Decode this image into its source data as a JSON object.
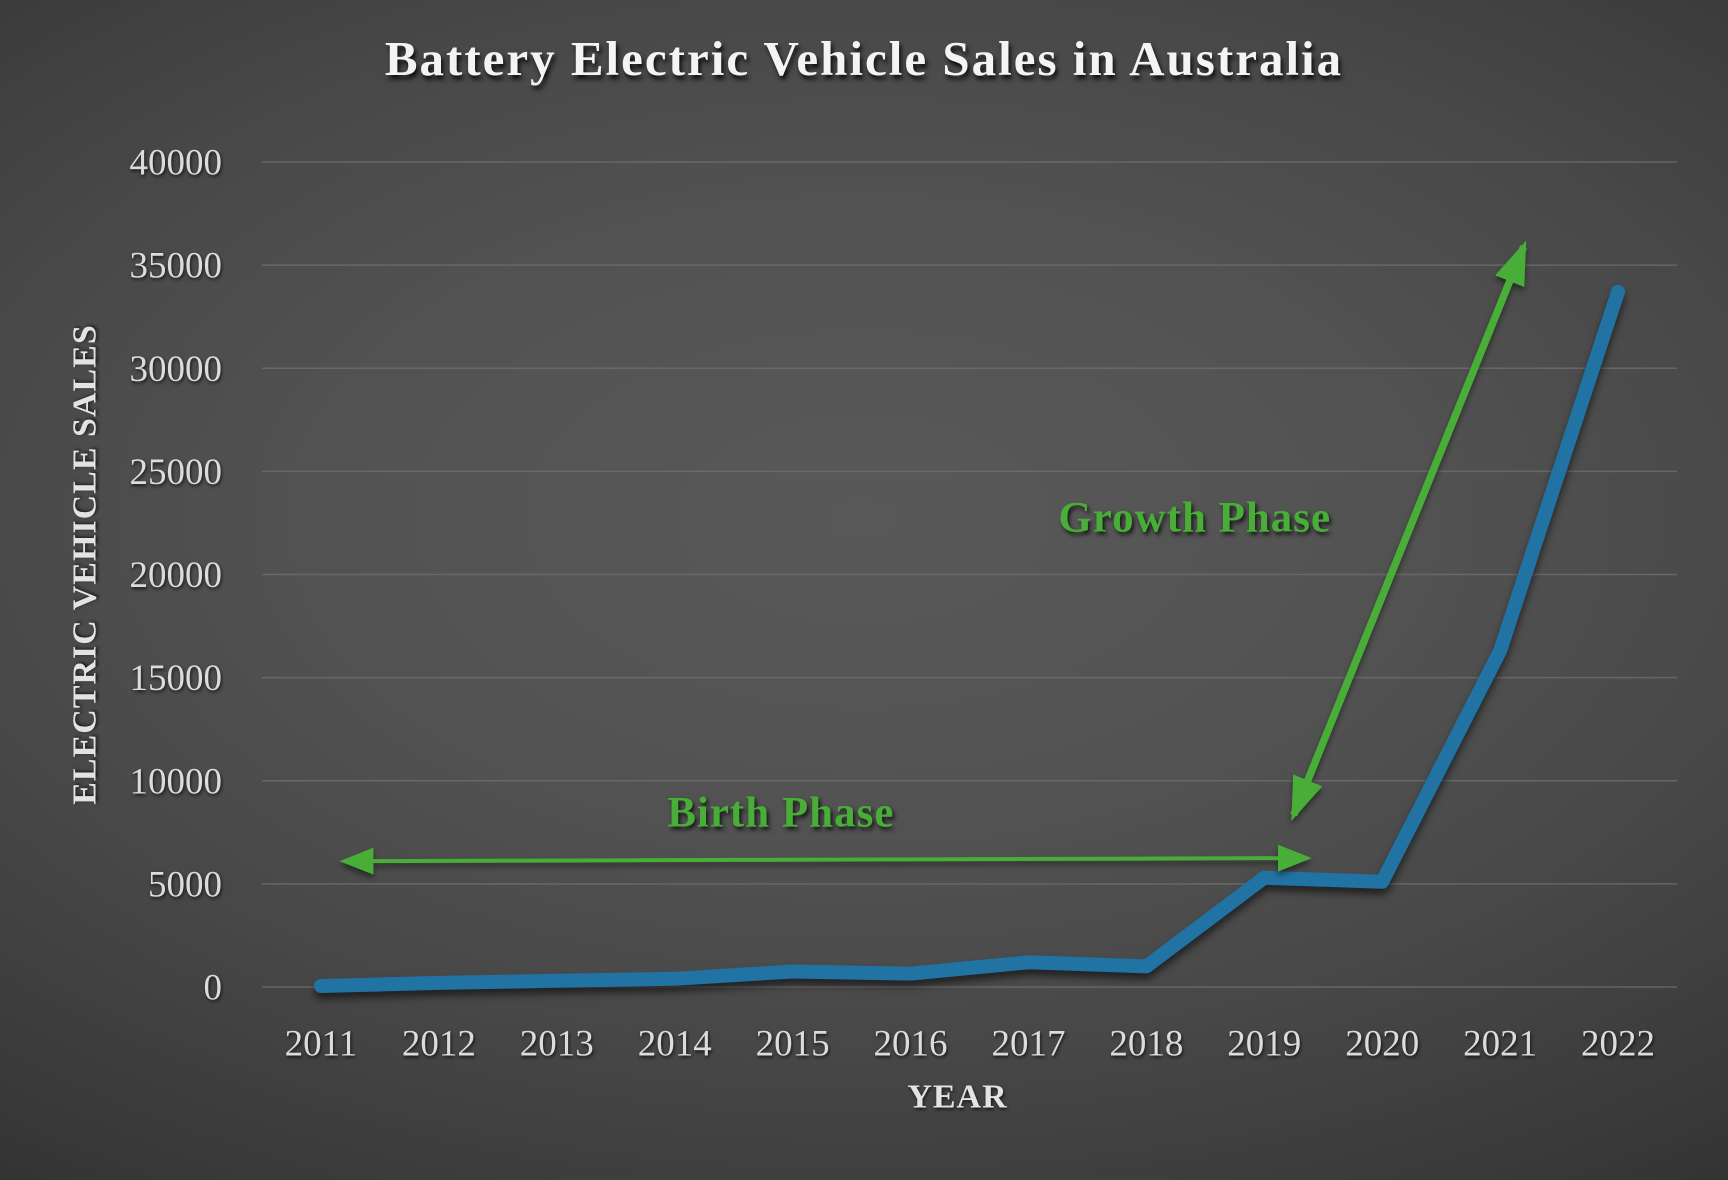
{
  "title": "Battery Electric Vehicle Sales in Australia",
  "colors": {
    "background_center": "#595959",
    "background_edge": "#1b1b1b",
    "series_blue": "#2173a3",
    "annotation_green": "#48ae38",
    "gridline_gray": "#707070",
    "text_light": "#dcdcdc"
  },
  "chart_data": {
    "type": "line",
    "title": "Battery Electric Vehicle Sales in Australia",
    "xlabel": "YEAR",
    "ylabel": "ELECTRIC VEHICLE SALES",
    "categories": [
      "2011",
      "2012",
      "2013",
      "2014",
      "2015",
      "2016",
      "2017",
      "2018",
      "2019",
      "2020",
      "2021",
      "2022"
    ],
    "series": [
      {
        "name": "Electric Vehicle Sales",
        "values": [
          50,
          200,
          300,
          400,
          750,
          650,
          1200,
          1000,
          5300,
          5100,
          16300,
          33700
        ]
      }
    ],
    "ylim": [
      0,
      40000
    ],
    "yticks": [
      0,
      5000,
      10000,
      15000,
      20000,
      25000,
      30000,
      35000,
      40000
    ],
    "grid": "horizontal",
    "legend": "none",
    "annotations": {
      "birth_phase": {
        "label": "Birth Phase",
        "text_year": 2014.9,
        "text_value": 8500,
        "arrow": {
          "x1_year": 2011.2,
          "y1_value": 6100,
          "x2_year": 2019.36,
          "y2_value": 6250,
          "stroke_width": 4,
          "head": "small"
        }
      },
      "growth_phase": {
        "label": "Growth Phase",
        "text_year": 2018.41,
        "text_value": 22800,
        "arrow": {
          "x1_year": 2019.25,
          "y1_value": 8340,
          "x2_year": 2021.2,
          "y2_value": 35900,
          "stroke_width": 7.5,
          "head": "big"
        }
      }
    }
  }
}
